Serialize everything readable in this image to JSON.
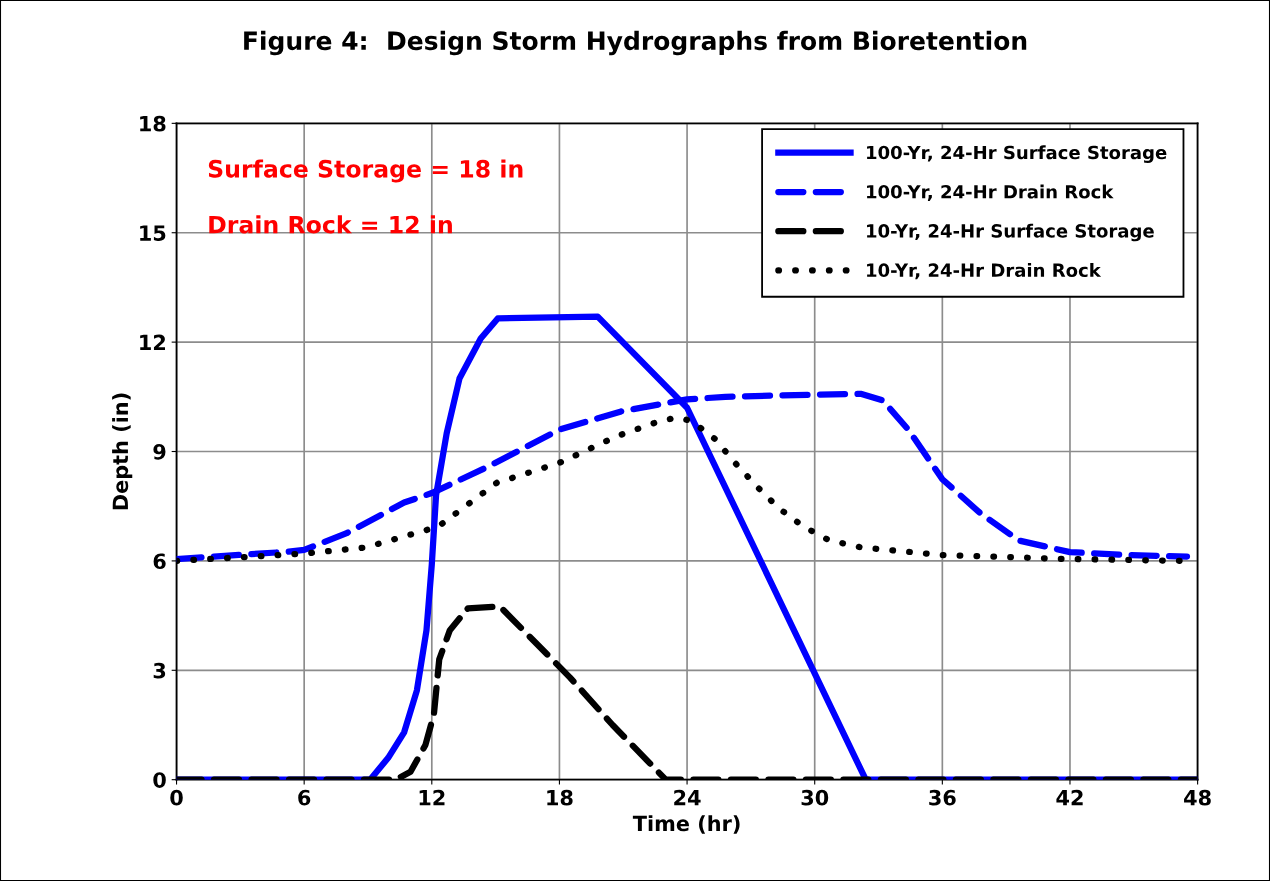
{
  "chart_data": {
    "type": "line",
    "title": "Figure 4:  Design Storm Hydrographs from Bioretention",
    "xlabel": "Time (hr)",
    "ylabel": "Depth (in)",
    "annotations": [
      "Surface Storage = 18 in",
      "Drain Rock = 12 in"
    ],
    "xlim": [
      0,
      48
    ],
    "xticks": [
      0,
      6,
      12,
      18,
      24,
      30,
      36,
      42,
      48
    ],
    "ylim": [
      0,
      18
    ],
    "yticks": [
      0,
      3,
      6,
      9,
      12,
      15,
      18
    ],
    "grid": true,
    "legend": "top right",
    "marker": "none",
    "series": [
      {
        "name": "100-Yr, 24-Hr Surface Storage",
        "color": "#0000ff",
        "line_style": "solid",
        "x": [
          0,
          9.1,
          9.95,
          10.7,
          11.3,
          11.75,
          12.0,
          12.2,
          12.7,
          13.3,
          14.3,
          15.1,
          19.8,
          24,
          32.4,
          48
        ],
        "values": [
          0,
          0,
          0.6,
          1.3,
          2.45,
          4.1,
          5.9,
          7.8,
          9.5,
          11.0,
          12.1,
          12.65,
          12.7,
          10.2,
          0,
          0
        ]
      },
      {
        "name": "100-Yr, 24-Hr Drain Rock",
        "color": "#0000ff",
        "line_style": "dashed",
        "x": [
          0,
          5.2,
          6,
          8,
          10.7,
          12,
          14.7,
          18,
          20.9,
          24,
          25.8,
          30,
          32.2,
          33.2,
          34.4,
          36,
          37.8,
          39.6,
          42,
          44.8,
          47.5
        ],
        "values": [
          6.05,
          6.25,
          6.3,
          6.76,
          7.6,
          7.86,
          8.6,
          9.6,
          10.1,
          10.43,
          10.5,
          10.56,
          10.58,
          10.4,
          9.6,
          8.24,
          7.3,
          6.56,
          6.24,
          6.16,
          6.12
        ]
      },
      {
        "name": "10-Yr, 24-Hr Surface Storage",
        "color": "#000000",
        "line_style": "dashed",
        "x": [
          0,
          10.3,
          11.0,
          11.7,
          12.1,
          12.35,
          12.85,
          13.7,
          15.2,
          18.5,
          20.5,
          23.0,
          48
        ],
        "values": [
          0,
          0,
          0.22,
          0.95,
          1.8,
          3.3,
          4.1,
          4.7,
          4.75,
          2.8,
          1.5,
          0,
          0
        ]
      },
      {
        "name": "10-Yr, 24-Hr Drain Rock",
        "color": "#000000",
        "line_style": "dotted",
        "x": [
          0,
          6,
          8.9,
          12.3,
          15.05,
          18,
          20.7,
          22.7,
          23.5,
          24.2,
          25.3,
          26.3,
          27.3,
          28.3,
          29.5,
          30.7,
          32.2,
          36,
          42,
          47.5
        ],
        "values": [
          6.0,
          6.2,
          6.37,
          6.94,
          8.14,
          8.69,
          9.42,
          9.83,
          9.93,
          9.84,
          9.35,
          8.66,
          8.03,
          7.45,
          6.93,
          6.56,
          6.37,
          6.16,
          6.05,
          6.0
        ]
      }
    ]
  }
}
